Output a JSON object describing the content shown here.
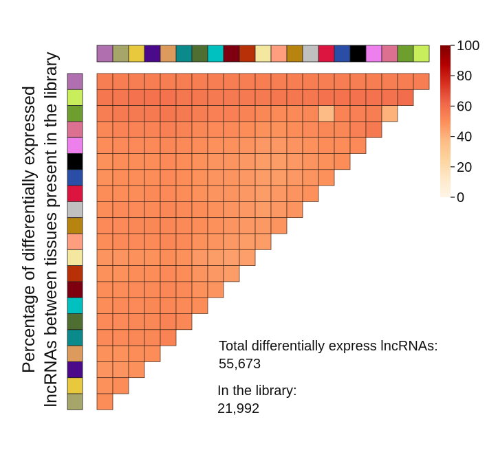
{
  "chart_data": {
    "type": "heatmap",
    "ylabel_lines": [
      "Percentage of differentially expressed",
      "lncRNAs between tissues present in the library"
    ],
    "tissue_colors": [
      "#b070b0",
      "#a6a66a",
      "#e8c83c",
      "#4a0a8a",
      "#dc9a5c",
      "#0a8a8a",
      "#4e6e32",
      "#00c0c0",
      "#7e0010",
      "#b83008",
      "#f4e8a0",
      "#ff9e7e",
      "#b88410",
      "#c0c0c0",
      "#dc1440",
      "#2a4ea6",
      "#000000",
      "#ee80ee",
      "#dc7090",
      "#6e9e2e",
      "#c8ee5c"
    ],
    "row_colors": [
      "#b070b0",
      "#c8ee5c",
      "#6e9e2e",
      "#dc7090",
      "#ee80ee",
      "#000000",
      "#2a4ea6",
      "#dc1440",
      "#c0c0c0",
      "#b88410",
      "#ff9e7e",
      "#f4e8a0",
      "#b83008",
      "#7e0010",
      "#00c0c0",
      "#4e6e32",
      "#0a8a8a",
      "#dc9a5c",
      "#4a0a8a",
      "#e8c83c",
      "#a6a66a"
    ],
    "colorbar": {
      "min": 0,
      "max": 100,
      "ticks": [
        "100",
        "80",
        "60",
        "40",
        "20",
        "0"
      ],
      "colors": [
        "#fff5e6",
        "#fee8c8",
        "#fdd49e",
        "#fdbb84",
        "#fc8d59",
        "#ef6548",
        "#d7301f",
        "#b30000",
        "#7f0000"
      ]
    },
    "values": [
      [
        55,
        55,
        55,
        55,
        55,
        55,
        55,
        55,
        55,
        55,
        55,
        55,
        55,
        55,
        55,
        55,
        55,
        55,
        55,
        55,
        55
      ],
      [
        57,
        57,
        58,
        58,
        58,
        57,
        57,
        56,
        56,
        56,
        56,
        57,
        57,
        57,
        58,
        58,
        58,
        58,
        58,
        60
      ],
      [
        55,
        56,
        56,
        56,
        57,
        56,
        55,
        54,
        54,
        53,
        52,
        51,
        51,
        52,
        37,
        53,
        54,
        55,
        40
      ],
      [
        52,
        53,
        53,
        53,
        54,
        53,
        52,
        51,
        51,
        50,
        49,
        49,
        50,
        51,
        52,
        52,
        54,
        56
      ],
      [
        50,
        51,
        51,
        51,
        52,
        51,
        50,
        49,
        49,
        48,
        47,
        47,
        48,
        49,
        50,
        50,
        51
      ],
      [
        49,
        50,
        50,
        50,
        51,
        50,
        49,
        48,
        48,
        47,
        46,
        46,
        47,
        48,
        49,
        50
      ],
      [
        49,
        50,
        50,
        50,
        51,
        50,
        49,
        48,
        48,
        47,
        46,
        46,
        47,
        48,
        49
      ],
      [
        50,
        50,
        50,
        51,
        51,
        50,
        49,
        48,
        48,
        47,
        46,
        47,
        48,
        49
      ],
      [
        50,
        51,
        51,
        51,
        52,
        51,
        50,
        49,
        48,
        47,
        46,
        47,
        48
      ],
      [
        51,
        51,
        52,
        52,
        52,
        51,
        50,
        49,
        48,
        47,
        47,
        48
      ],
      [
        50,
        51,
        51,
        51,
        52,
        51,
        49,
        48,
        47,
        46,
        46
      ],
      [
        48,
        48,
        49,
        49,
        50,
        49,
        47,
        46,
        45,
        45
      ],
      [
        49,
        49,
        50,
        50,
        51,
        50,
        48,
        47,
        46
      ],
      [
        50,
        50,
        51,
        51,
        52,
        51,
        49,
        48
      ],
      [
        50,
        51,
        51,
        52,
        52,
        51,
        50
      ],
      [
        51,
        51,
        52,
        52,
        53,
        52
      ],
      [
        51,
        51,
        52,
        52,
        53
      ],
      [
        49,
        49,
        50,
        50
      ],
      [
        48,
        48,
        49
      ],
      [
        49,
        50
      ],
      [
        50
      ]
    ]
  },
  "annotations": {
    "total_label": "Total differentially express lncRNAs:",
    "total_value": "55,673",
    "library_label": "In the library:",
    "library_value": "21,992"
  }
}
